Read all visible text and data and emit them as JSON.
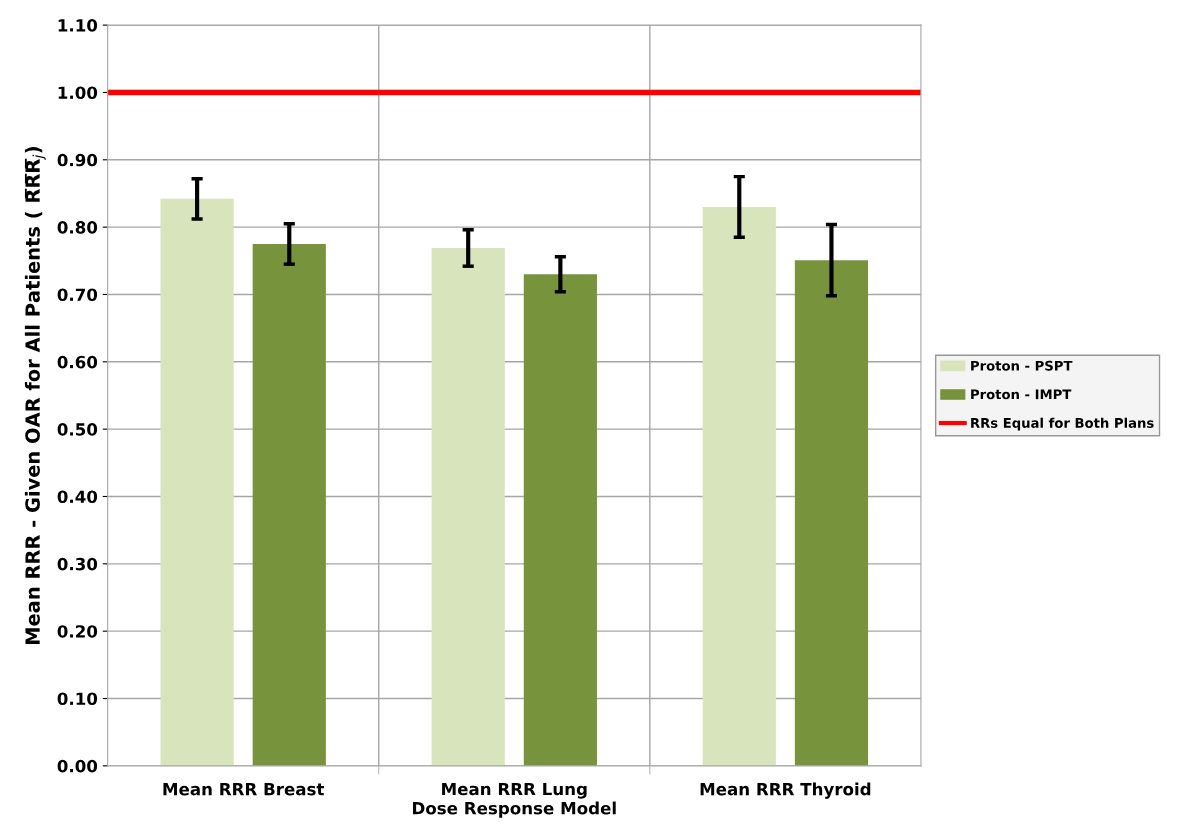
{
  "chart_data": {
    "type": "bar",
    "xlabel": "Dose Response Model",
    "ylabel": "Mean RRR - Given OAR for All Patients ( R̅R̅R̅$_{j}$)",
    "categories": [
      "Mean RRR Breast",
      "Mean RRR Lung",
      "Mean RRR Thyroid"
    ],
    "series": [
      {
        "name": "Proton - PSPT",
        "color": "#d8e4bc",
        "values": [
          0.842,
          0.769,
          0.83
        ],
        "errors": [
          0.03,
          0.027,
          0.045
        ]
      },
      {
        "name": "Proton - IMPT",
        "color": "#77933c",
        "values": [
          0.775,
          0.73,
          0.751
        ],
        "errors": [
          0.03,
          0.026,
          0.053
        ]
      }
    ],
    "ref_lines": [
      {
        "axis": "y",
        "value": 1.0,
        "label": "RRs Equal for Both Plans",
        "color": "#ff0000",
        "line_style": "solid"
      }
    ],
    "ylim": [
      0,
      1.1
    ],
    "yticks": [
      {
        "value": 0,
        "label": "0.00"
      },
      {
        "value": 0.1,
        "label": "0.10"
      },
      {
        "value": 0.2,
        "label": "0.20"
      },
      {
        "value": 0.3,
        "label": "0.30"
      },
      {
        "value": 0.4,
        "label": "0.40"
      },
      {
        "value": 0.5,
        "label": "0.50"
      },
      {
        "value": 0.6,
        "label": "0.60"
      },
      {
        "value": 0.7,
        "label": "0.70"
      },
      {
        "value": 0.8,
        "label": "0.80"
      },
      {
        "value": 0.9,
        "label": "0.90"
      },
      {
        "value": 1.0,
        "label": "1.00"
      },
      {
        "value": 1.1,
        "label": "1.10"
      }
    ],
    "grid": true,
    "legend": "right"
  }
}
